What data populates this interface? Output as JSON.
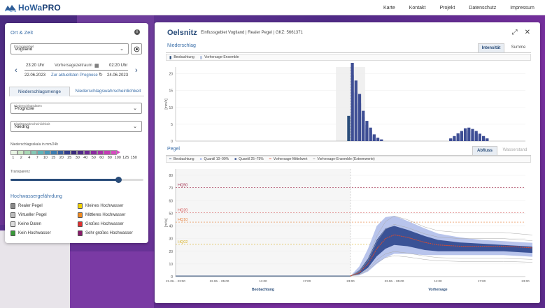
{
  "app": {
    "name_prefix": "HoWa",
    "name_suffix": "PRO",
    "nav": [
      "Karte",
      "Kontakt",
      "Projekt",
      "Datenschutz",
      "Impressum"
    ]
  },
  "left": {
    "title": "Ort & Zeit",
    "catchment_label": "Einzugsgebiet",
    "catchment_value": "Vogtland",
    "time_from": "23:20 Uhr",
    "period_label": "Vorhersagezeitraum",
    "time_to": "02:20 Uhr",
    "date_from": "22.06.2023",
    "current_link": "Zur aktuellsten Prognose",
    "date_to": "24.06.2023",
    "tab_amount": "Niederschlagsmenge",
    "tab_prob": "Niederschlagswahrscheinlichkeit",
    "data_label": "Niederschlagsdaten",
    "data_value": "Prognose",
    "prob_label": "Eintrittswahrscheinlichkeit",
    "prob_value": "Niedrig",
    "scale_label": "Niederschlagsskala in mm/24h",
    "scale_numbers": [
      "1",
      "2",
      "4",
      "7",
      "10",
      "15",
      "20",
      "25",
      "30",
      "40",
      "50",
      "60",
      "80",
      "100",
      "125",
      "150"
    ],
    "scale_colors": [
      "#e8f4e4",
      "#cde8c6",
      "#a8d8b4",
      "#84c8b4",
      "#5eb4b8",
      "#4898b8",
      "#3c7cb0",
      "#3860a0",
      "#343e8c",
      "#3a2a7c",
      "#4e2a88",
      "#6a2894",
      "#8a2aa0",
      "#a830aa",
      "#c43cb4",
      "#d64cc0"
    ],
    "transparency_label": "Transparenz",
    "transparency_value": 0.81,
    "hw_title": "Hochwassergefährdung",
    "legend": [
      {
        "label": "Realer Pegel",
        "color": "#888888"
      },
      {
        "label": "Kleines Hochwasser",
        "color": "#f0d000"
      },
      {
        "label": "Virtueller Pegel",
        "color": "#bbbbbb"
      },
      {
        "label": "Mittleres Hochwasser",
        "color": "#f08a20"
      },
      {
        "label": "Keine Daten",
        "color": "#dddddd"
      },
      {
        "label": "Großes Hochwasser",
        "color": "#e03030"
      },
      {
        "label": "Kein Hochwasser",
        "color": "#3a9a3a"
      },
      {
        "label": "Sehr großes Hochwasser",
        "color": "#8a1a6a"
      }
    ]
  },
  "right": {
    "station": "Oelsnitz",
    "subtitle": "Einflussgebiet Vogtland | Realer Pegel | GKZ: 5661371",
    "precip_title": "Niederschlag",
    "tab_intensity": "Intensität",
    "tab_sum": "Summe",
    "precip_legend_obs": "Beobachtung",
    "precip_legend_ens": "Vorhersage-Ensemble",
    "pegel_title": "Pegel",
    "tab_flow": "Abfluss",
    "tab_level": "Wasserstand",
    "pegel_legend": [
      "Beobachtung",
      "Quantil 10–90%",
      "Quantil 25–75%",
      "Vorhersage-Mittelwert",
      "Vorhersage-Ensemble (Extremwerte)"
    ],
    "obs_label": "Beobachtung",
    "fc_label": "Vorhersage"
  },
  "chart_data": [
    {
      "type": "bar",
      "title": "Niederschlag",
      "ylabel": "[mm/h]",
      "ylim": [
        0,
        22
      ],
      "yticks": [
        0,
        5,
        10,
        15,
        20
      ],
      "series": [
        {
          "name": "Beobachtung",
          "x": [
            47
          ],
          "values": [
            7.5
          ]
        },
        {
          "name": "Vorhersage-Ensemble",
          "x": [
            48,
            49,
            50,
            51,
            52,
            53,
            54,
            55,
            56,
            75,
            76,
            77,
            78,
            79,
            80,
            81,
            82,
            83,
            84,
            85
          ],
          "values": [
            24.5,
            18,
            14,
            9,
            6,
            4,
            2,
            1,
            0.5,
            0.8,
            1.5,
            2.3,
            3,
            3.8,
            4,
            3.6,
            3,
            2.2,
            1.5,
            0.8
          ]
        }
      ]
    },
    {
      "type": "line",
      "title": "Pegel",
      "ylabel": "[m³/s]",
      "ylim": [
        0,
        85
      ],
      "yticks": [
        0,
        10,
        20,
        30,
        40,
        50,
        60,
        70,
        80
      ],
      "xticks": [
        "21.06. - 23:00",
        "22.06. - 05:00",
        "11:00",
        "17:00",
        "23:00",
        "23.06. - 05:00",
        "11:00",
        "17:00",
        "23:00"
      ],
      "thresholds": [
        {
          "name": "HQ50",
          "value": 70.5
        },
        {
          "name": "HQ20",
          "value": 50.5
        },
        {
          "name": "HQ10",
          "value": 43
        },
        {
          "name": "HQ02",
          "value": 25.5
        }
      ],
      "forecast_start_index": 4,
      "series": [
        {
          "name": "Vorhersage-Mittelwert",
          "x": [
            4,
            4.2,
            4.4,
            4.6,
            4.8,
            5,
            5.3,
            5.7,
            6,
            6.5,
            7,
            7.5,
            8,
            8.5
          ],
          "values": [
            0.5,
            3,
            10,
            22,
            30,
            33,
            31,
            27,
            25,
            24,
            24,
            24,
            23,
            22
          ]
        },
        {
          "name": "Quantil 25-75% oben",
          "x": [
            4,
            4.2,
            4.4,
            4.6,
            4.8,
            5,
            5.3,
            5.7,
            6,
            6.5,
            7,
            7.5,
            8,
            8.5
          ],
          "values": [
            0.5,
            5,
            14,
            29,
            38,
            40,
            37,
            32,
            29,
            27,
            26,
            25,
            24,
            23
          ]
        },
        {
          "name": "Quantil 25-75% unten",
          "x": [
            4,
            4.2,
            4.4,
            4.6,
            4.8,
            5,
            5.3,
            5.7,
            6,
            6.5,
            7,
            7.5,
            8,
            8.5
          ],
          "values": [
            0.5,
            2,
            7,
            16,
            22,
            25,
            24,
            21,
            20,
            20,
            20,
            20,
            19,
            18
          ]
        },
        {
          "name": "Quantil 10-90% oben",
          "x": [
            4,
            4.2,
            4.4,
            4.6,
            4.8,
            5,
            5.3,
            5.7,
            6,
            6.5,
            7,
            7.5,
            8,
            8.5
          ],
          "values": [
            0.5,
            8,
            22,
            40,
            47,
            48,
            44,
            38,
            34,
            31,
            29,
            28,
            27,
            26
          ]
        },
        {
          "name": "Quantil 10-90% unten",
          "x": [
            4,
            4.2,
            4.4,
            4.6,
            4.8,
            5,
            5.3,
            5.7,
            6,
            6.5,
            7,
            7.5,
            8,
            8.5
          ],
          "values": [
            0.5,
            1,
            4,
            10,
            15,
            18,
            18,
            17,
            17,
            17,
            17,
            17,
            16,
            15
          ]
        }
      ]
    }
  ]
}
